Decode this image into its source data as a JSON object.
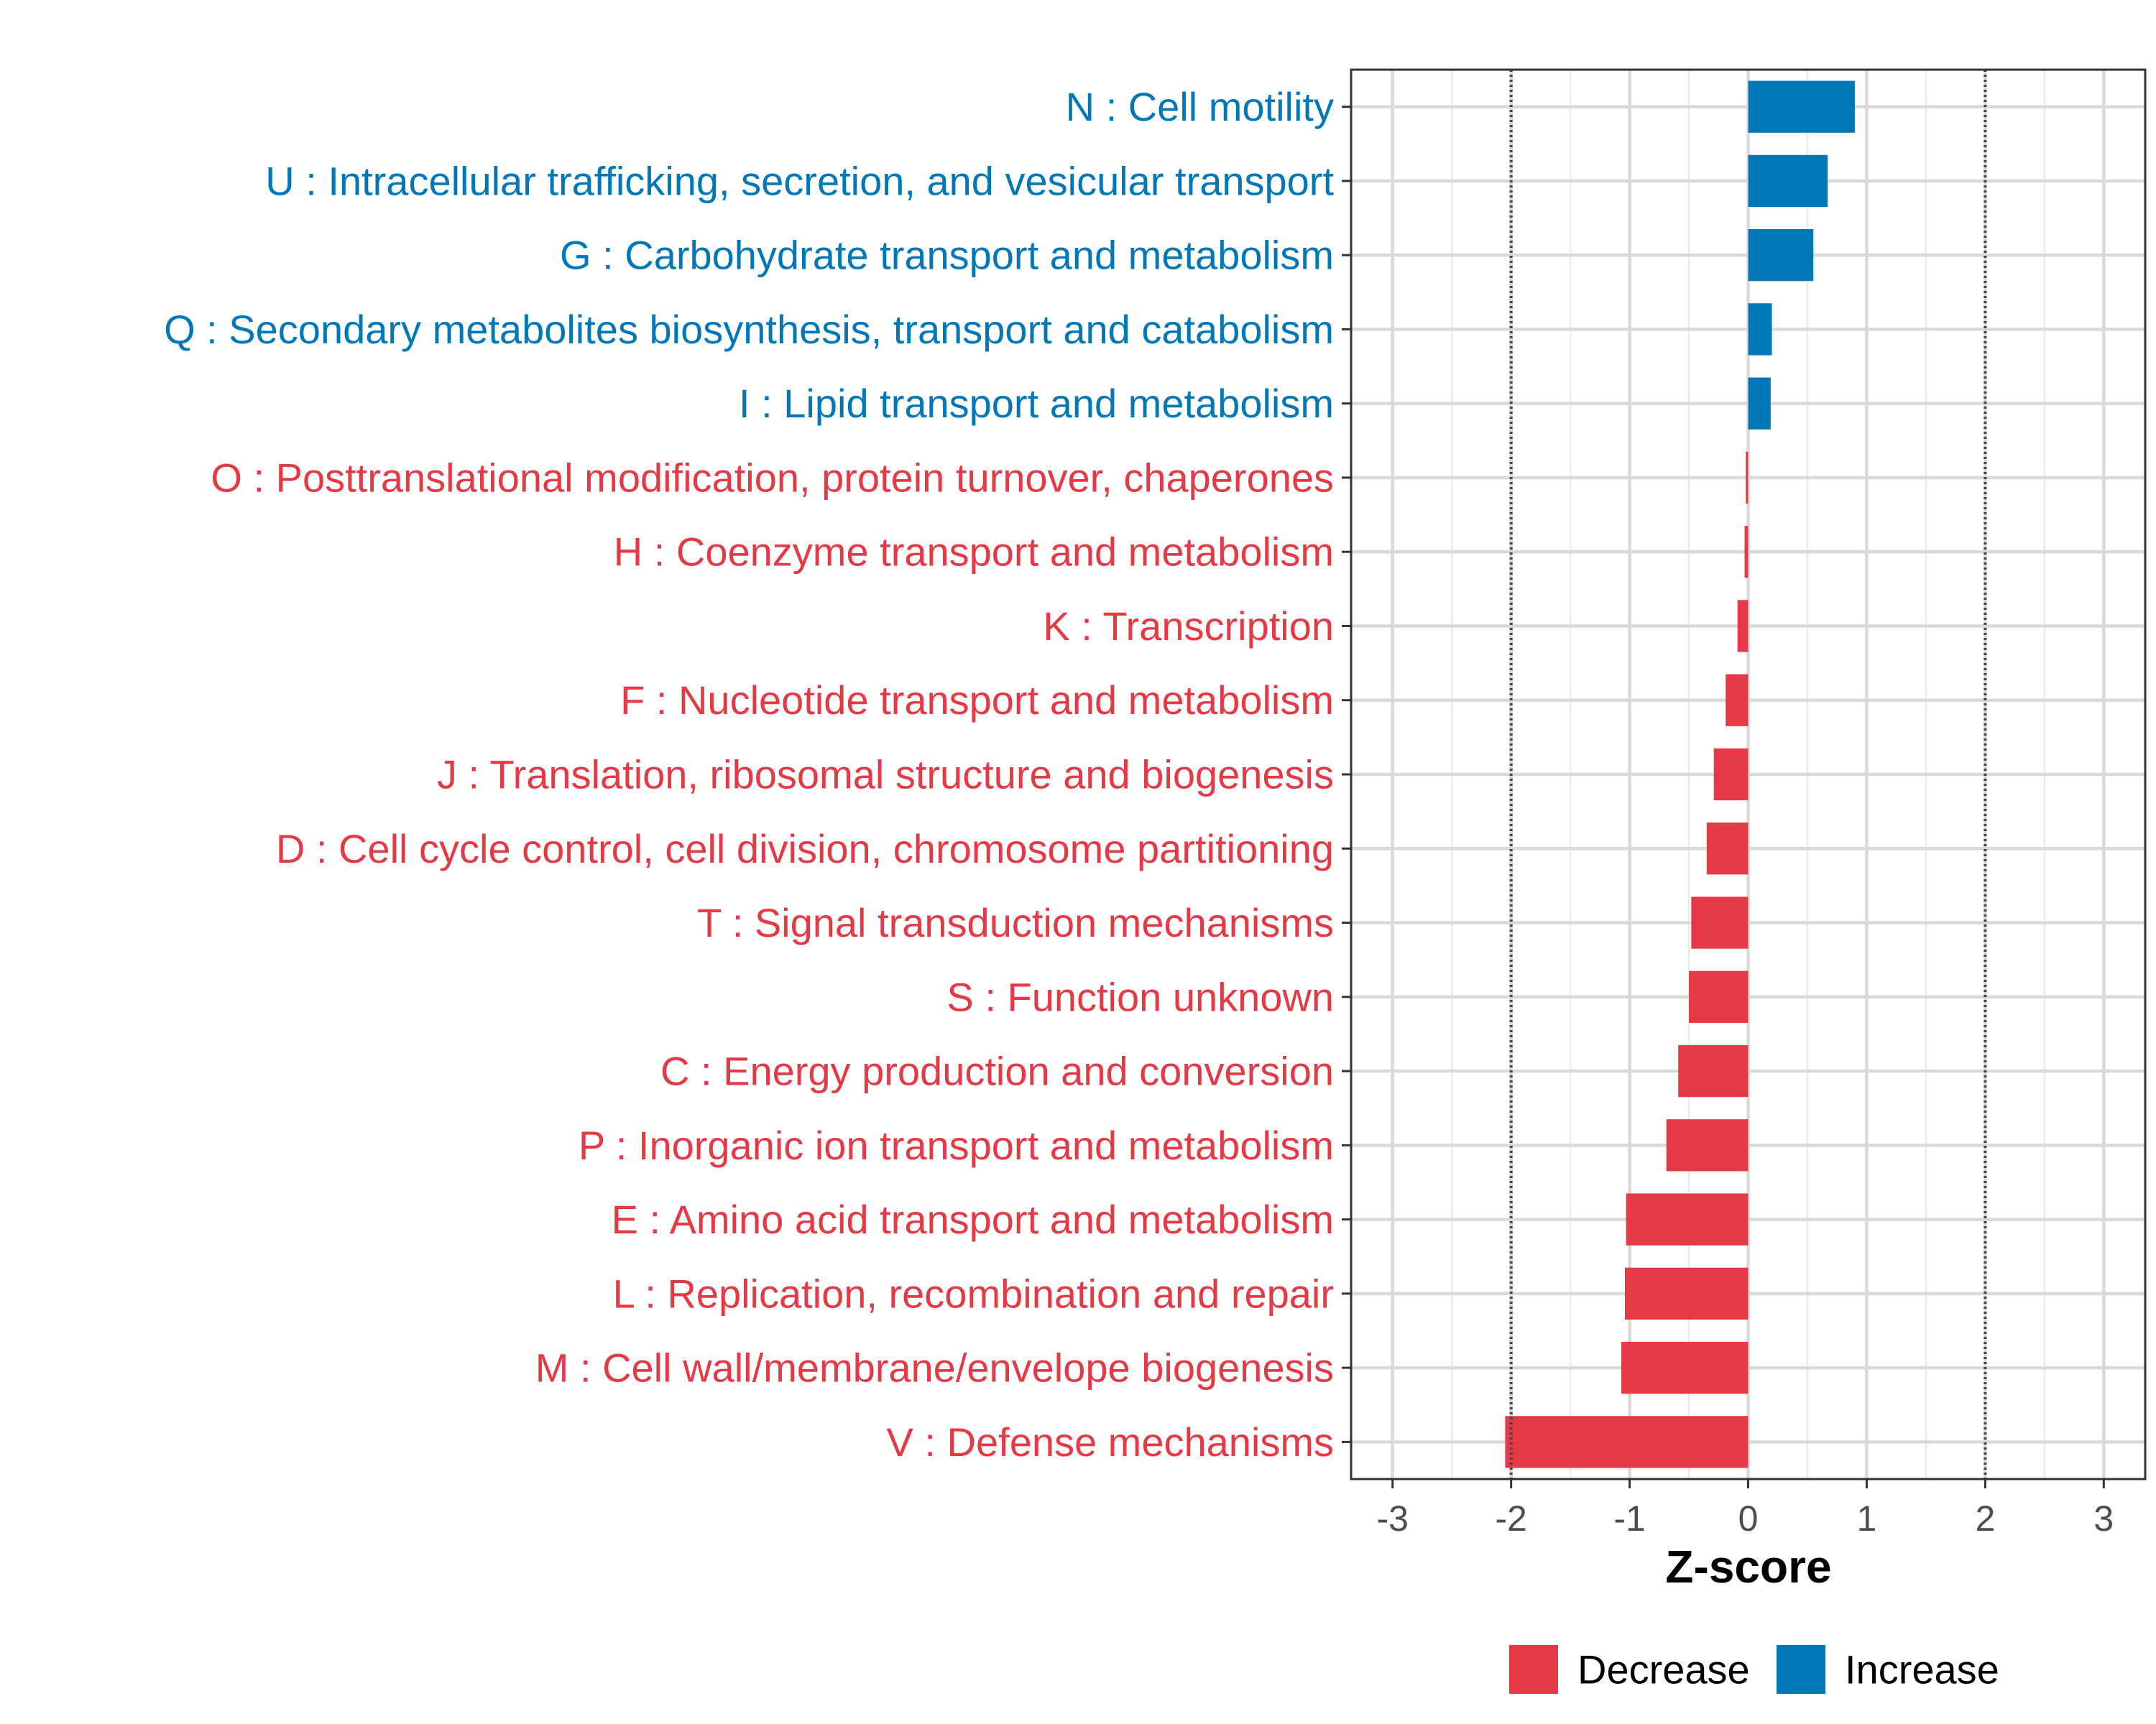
{
  "chart_data": {
    "type": "bar",
    "orientation": "horizontal",
    "xlabel": "Z-score",
    "ylabel": "",
    "xlim": [
      -3.35,
      3.35
    ],
    "xticks": [
      -3,
      -2,
      -1,
      0,
      1,
      2,
      3
    ],
    "xtick_labels": [
      "-3",
      "-2",
      "-1",
      "0",
      "1",
      "2",
      "3"
    ],
    "reference_lines": [
      -2,
      2
    ],
    "grid": true,
    "legend_position": "bottom",
    "categories": [
      "N : Cell motility",
      "U : Intracellular trafficking, secretion, and vesicular transport",
      "G : Carbohydrate transport and metabolism",
      "Q : Secondary metabolites biosynthesis, transport and catabolism",
      "I : Lipid transport and metabolism",
      "O : Posttranslational modification, protein turnover, chaperones",
      "H : Coenzyme transport and metabolism",
      "K : Transcription",
      "F : Nucleotide transport and metabolism",
      "J : Translation, ribosomal structure and biogenesis",
      "D : Cell cycle control, cell division, chromosome partitioning",
      "T : Signal transduction mechanisms",
      "S : Function unknown",
      "C : Energy production and conversion",
      "P : Inorganic ion transport and metabolism",
      "E : Amino acid transport and metabolism",
      "L : Replication, recombination and repair",
      "M : Cell wall/membrane/envelope biogenesis",
      "V : Defense mechanisms"
    ],
    "values": [
      0.9,
      0.67,
      0.55,
      0.2,
      0.19,
      -0.02,
      -0.03,
      -0.09,
      -0.19,
      -0.29,
      -0.35,
      -0.48,
      -0.5,
      -0.59,
      -0.69,
      -1.03,
      -1.04,
      -1.07,
      -2.05
    ],
    "series_groups": [
      "Increase",
      "Increase",
      "Increase",
      "Increase",
      "Increase",
      "Decrease",
      "Decrease",
      "Decrease",
      "Decrease",
      "Decrease",
      "Decrease",
      "Decrease",
      "Decrease",
      "Decrease",
      "Decrease",
      "Decrease",
      "Decrease",
      "Decrease",
      "Decrease"
    ],
    "legend": [
      {
        "name": "Decrease",
        "color": "#E63946"
      },
      {
        "name": "Increase",
        "color": "#0077B6"
      }
    ]
  }
}
